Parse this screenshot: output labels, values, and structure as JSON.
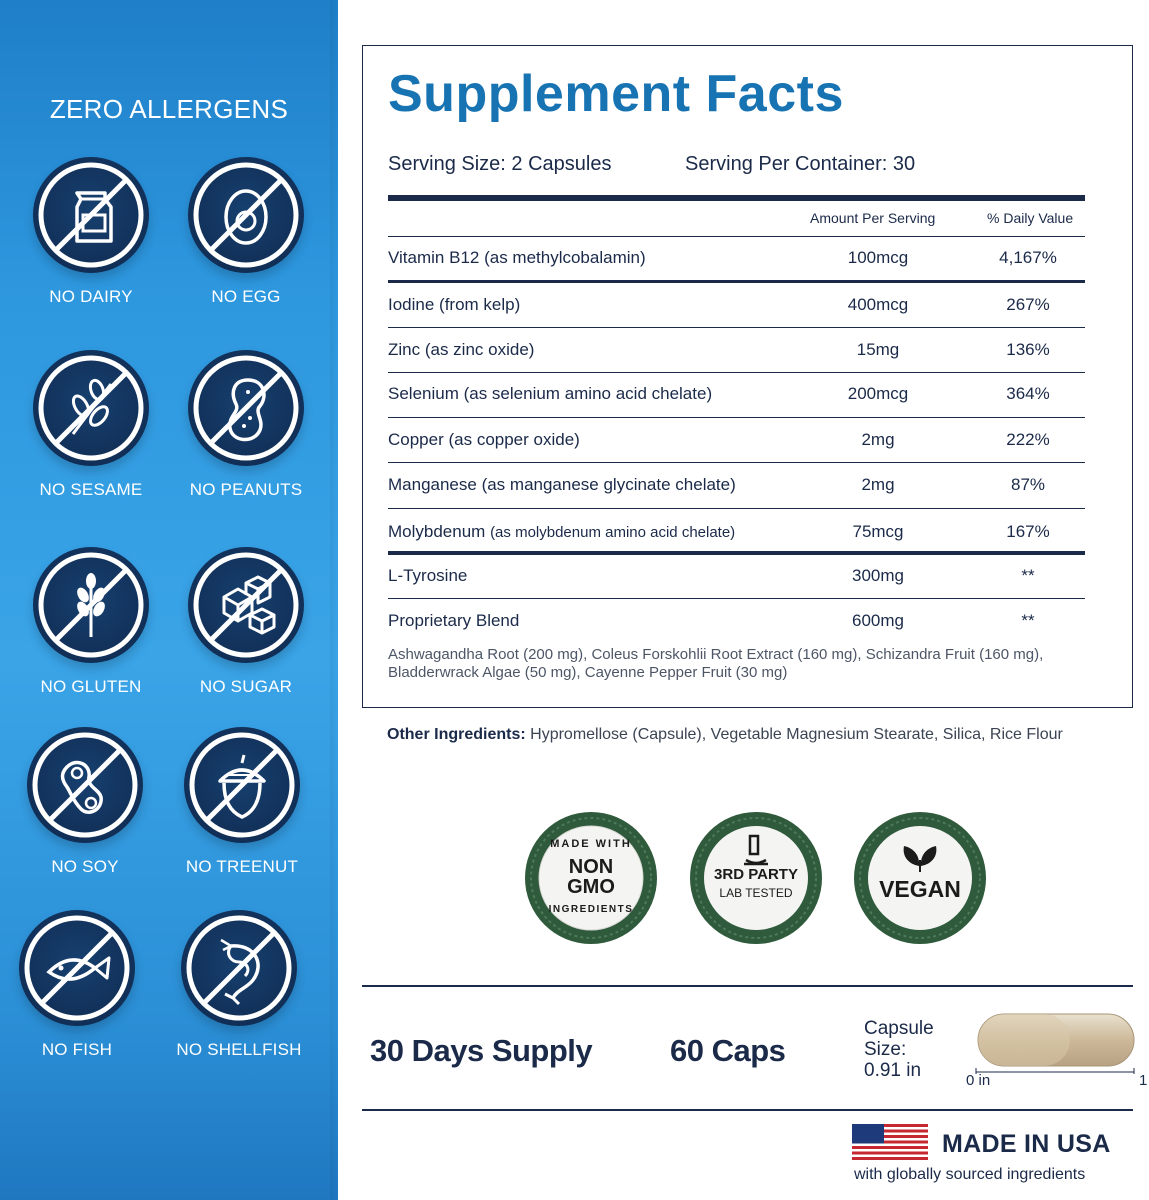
{
  "allergens": {
    "title": "ZERO ALLERGENS",
    "items": [
      {
        "label": "NO DAIRY",
        "icon": "milk-carton-icon"
      },
      {
        "label": "NO EGG",
        "icon": "egg-icon"
      },
      {
        "label": "NO SESAME",
        "icon": "sesame-icon"
      },
      {
        "label": "NO PEANUTS",
        "icon": "peanut-icon"
      },
      {
        "label": "NO GLUTEN",
        "icon": "wheat-icon"
      },
      {
        "label": "NO SUGAR",
        "icon": "sugar-cube-icon"
      },
      {
        "label": "NO SOY",
        "icon": "soybean-icon"
      },
      {
        "label": "NO TREENUT",
        "icon": "acorn-icon"
      },
      {
        "label": "NO FISH",
        "icon": "fish-icon"
      },
      {
        "label": "NO SHELLFISH",
        "icon": "shrimp-icon"
      }
    ]
  },
  "facts": {
    "title": "Supplement Facts",
    "serving_size": "Serving Size: 2 Capsules",
    "servings_per_container": "Serving Per Container: 30",
    "col_amount": "Amount Per Serving",
    "col_dv": "% Daily Value",
    "rows": [
      {
        "name": "Vitamin B12 (as methylcobalamin)",
        "amount": "100mcg",
        "dv": "4,167%"
      },
      {
        "name": "Iodine (from kelp)",
        "amount": "400mcg",
        "dv": "267%"
      },
      {
        "name": "Zinc (as zinc oxide)",
        "amount": "15mg",
        "dv": "136%"
      },
      {
        "name": "Selenium (as selenium amino acid chelate)",
        "amount": "200mcg",
        "dv": "364%"
      },
      {
        "name": "Copper (as copper oxide)",
        "amount": "2mg",
        "dv": "222%"
      },
      {
        "name": "Manganese (as manganese glycinate chelate)",
        "amount": "2mg",
        "dv": "87%"
      },
      {
        "name": "Molybdenum",
        "name_note": "(as molybdenum amino acid chelate)",
        "amount": "75mcg",
        "dv": "167%"
      },
      {
        "name": "L-Tyrosine",
        "amount": "300mg",
        "dv": "**"
      },
      {
        "name": "Proprietary Blend",
        "amount": "600mg",
        "dv": "**"
      }
    ],
    "blend_description": "Ashwagandha Root (200 mg), Coleus Forskohlii Root Extract (160 mg), Schizandra Fruit (160 mg), Bladderwrack Algae (50 mg), Cayenne Pepper Fruit (30 mg)"
  },
  "other_ingredients": {
    "label": "Other Ingredients:",
    "value": "Hypromellose (Capsule), Vegetable Magnesium Stearate, Silica, Rice Flour"
  },
  "seals": {
    "non_gmo": {
      "arc": "MADE WITH INGREDIENTS",
      "line1": "NON",
      "line2": "GMO",
      "top_arc": "MADE WITH",
      "bottom_arc": "INGREDIENTS"
    },
    "lab": {
      "line1": "3RD PARTY",
      "line2": "LAB TESTED",
      "icon": "microscope-icon"
    },
    "vegan": {
      "label": "VEGAN",
      "icon": "leaves-icon"
    }
  },
  "bottom": {
    "supply": "30 Days Supply",
    "caps": "60 Caps",
    "capsule_size_line1": "Capsule",
    "capsule_size_line2": "Size:",
    "capsule_size_line3": "0.91 in",
    "ruler_start": "0 in",
    "ruler_end": "1",
    "made_in": "MADE IN USA",
    "made_sub": "with globally sourced ingredients"
  },
  "colors": {
    "panel_blue": "#2e98df",
    "badge_navy": "#112f57",
    "title_blue": "#1773b2",
    "text_navy": "#1b2a49",
    "seal_green": "#2f5a3c"
  }
}
